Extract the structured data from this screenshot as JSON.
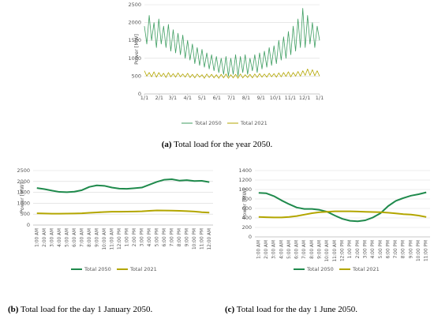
{
  "chart_data": [
    {
      "type": "line",
      "caption_label": "(a)",
      "caption": "Total load for the year 2050.",
      "ylabel": "Power [MW]",
      "x": [
        0,
        5,
        10,
        15,
        20,
        25,
        30,
        35,
        40,
        45,
        50,
        55,
        60,
        65,
        70,
        75,
        80,
        85,
        90,
        95,
        100,
        105,
        110,
        115,
        120,
        125,
        130,
        135,
        140,
        145,
        150,
        155,
        160,
        165,
        170,
        175,
        180,
        185,
        190,
        195,
        200,
        205,
        210,
        215,
        220,
        225,
        230,
        235,
        240,
        245,
        250,
        255,
        260,
        265,
        270,
        275,
        280,
        285,
        290,
        295,
        300,
        305,
        310,
        315,
        320,
        325,
        330,
        335,
        340,
        345,
        350,
        355,
        360,
        365
      ],
      "xlim": [
        0,
        365
      ],
      "xticks": [
        {
          "value": 0,
          "label": "1/1"
        },
        {
          "value": 31,
          "label": "2/1"
        },
        {
          "value": 59,
          "label": "3/1"
        },
        {
          "value": 90,
          "label": "4/1"
        },
        {
          "value": 120,
          "label": "5/1"
        },
        {
          "value": 151,
          "label": "6/1"
        },
        {
          "value": 181,
          "label": "7/1"
        },
        {
          "value": 212,
          "label": "8/1"
        },
        {
          "value": 243,
          "label": "9/1"
        },
        {
          "value": 273,
          "label": "10/1"
        },
        {
          "value": 304,
          "label": "11/1"
        },
        {
          "value": 334,
          "label": "12/1"
        },
        {
          "value": 365,
          "label": "1/1"
        }
      ],
      "ylim": [
        0,
        2500
      ],
      "yticks": [
        0,
        500,
        1000,
        1500,
        2000,
        2500
      ],
      "grid": true,
      "series": [
        {
          "name": "Total 2050",
          "color": "#3f9e62",
          "values": [
            1900,
            1400,
            2200,
            1500,
            2000,
            1300,
            2100,
            1400,
            1900,
            1300,
            1950,
            1200,
            1800,
            1150,
            1700,
            1100,
            1650,
            1000,
            1500,
            950,
            1400,
            850,
            1300,
            800,
            1250,
            750,
            1150,
            700,
            1100,
            650,
            1050,
            600,
            1000,
            550,
            1050,
            500,
            1000,
            550,
            1100,
            500,
            1050,
            600,
            1100,
            550,
            1000,
            650,
            1100,
            600,
            1150,
            700,
            1200,
            750,
            1300,
            800,
            1350,
            850,
            1500,
            950,
            1600,
            1000,
            1750,
            1100,
            1900,
            1200,
            2100,
            1300,
            2400,
            1300,
            2200,
            1400,
            2000,
            1300,
            1900,
            1500
          ]
        },
        {
          "name": "Total 2021",
          "color": "#b3a600",
          "values": [
            650,
            500,
            600,
            480,
            620,
            470,
            600,
            490,
            580,
            460,
            600,
            480,
            570,
            470,
            590,
            480,
            560,
            470,
            580,
            460,
            550,
            450,
            560,
            470,
            540,
            440,
            560,
            460,
            550,
            450,
            540,
            440,
            550,
            450,
            560,
            440,
            540,
            450,
            550,
            440,
            560,
            450,
            540,
            460,
            550,
            450,
            560,
            460,
            570,
            470,
            560,
            470,
            580,
            480,
            570,
            470,
            590,
            480,
            600,
            490,
            620,
            480,
            600,
            500,
            630,
            500,
            650,
            520,
            700,
            520,
            680,
            510,
            650,
            500
          ]
        }
      ]
    },
    {
      "type": "line",
      "caption_label": "(b)",
      "caption": "Total load for the day 1 January 2050.",
      "ylabel": "Power [MW]",
      "categories": [
        "1:00 AM",
        "2:00 AM",
        "3:00 AM",
        "4:00 AM",
        "5:00 AM",
        "6:00 AM",
        "7:00 AM",
        "8:00 AM",
        "9:00 AM",
        "10:00 AM",
        "11:00 AM",
        "12:00 PM",
        "1:00 PM",
        "2:00 PM",
        "3:00 PM",
        "4:00 PM",
        "5:00 PM",
        "6:00 PM",
        "7:00 PM",
        "8:00 PM",
        "9:00 PM",
        "10:00 PM",
        "11:00 PM",
        "12:00 AM"
      ],
      "ylim": [
        0,
        2500
      ],
      "yticks": [
        0,
        500,
        1000,
        1500,
        2000,
        2500
      ],
      "grid": true,
      "series": [
        {
          "name": "Total 2050",
          "color": "#1f8a4c",
          "values": [
            1700,
            1650,
            1580,
            1520,
            1510,
            1530,
            1600,
            1750,
            1820,
            1800,
            1720,
            1670,
            1660,
            1690,
            1720,
            1850,
            1980,
            2080,
            2100,
            2040,
            2060,
            2020,
            2030,
            1970
          ]
        },
        {
          "name": "Total 2021",
          "color": "#b3a600",
          "values": [
            540,
            530,
            520,
            520,
            525,
            530,
            540,
            560,
            580,
            600,
            610,
            610,
            615,
            620,
            630,
            650,
            670,
            665,
            660,
            650,
            640,
            620,
            590,
            570
          ]
        }
      ]
    },
    {
      "type": "line",
      "caption_label": "(c)",
      "caption": "Total load for the day 1 June 2050.",
      "ylabel": "Power [MW]",
      "categories": [
        "1:00 AM",
        "2:00 AM",
        "3:00 AM",
        "4:00 AM",
        "5:00 AM",
        "6:00 AM",
        "7:00 AM",
        "8:00 AM",
        "9:00 AM",
        "10:00 AM",
        "11:00 AM",
        "12:00 PM",
        "1:00 PM",
        "2:00 PM",
        "3:00 PM",
        "4:00 PM",
        "5:00 PM",
        "6:00 PM",
        "7:00 PM",
        "8:00 PM",
        "9:00 PM",
        "10:00 PM",
        "11:00 PM"
      ],
      "ylim": [
        0,
        1400
      ],
      "yticks": [
        0,
        200,
        400,
        600,
        800,
        1000,
        1200,
        1400
      ],
      "grid": true,
      "series": [
        {
          "name": "Total 2050",
          "color": "#1f8a4c",
          "values": [
            930,
            920,
            860,
            770,
            690,
            620,
            590,
            590,
            570,
            530,
            450,
            380,
            340,
            330,
            350,
            410,
            500,
            650,
            760,
            820,
            870,
            900,
            940
          ]
        },
        {
          "name": "Total 2021",
          "color": "#b3a600",
          "values": [
            420,
            415,
            410,
            410,
            420,
            440,
            470,
            500,
            520,
            530,
            540,
            540,
            540,
            535,
            530,
            525,
            520,
            510,
            495,
            480,
            470,
            450,
            420
          ]
        }
      ]
    }
  ]
}
